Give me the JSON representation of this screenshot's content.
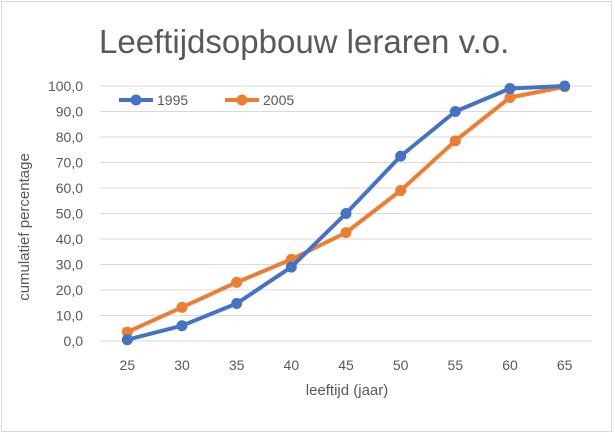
{
  "chart_data": {
    "type": "line",
    "title": "Leeftijdsopbouw leraren v.o.",
    "xlabel": "leeftijd (jaar)",
    "ylabel": "cumulatief percentage",
    "x": [
      25,
      30,
      35,
      40,
      45,
      50,
      55,
      60,
      65
    ],
    "x_tick_labels": [
      "25",
      "30",
      "35",
      "40",
      "45",
      "50",
      "55",
      "60",
      "65"
    ],
    "y_tick_labels": [
      "0,0",
      "10,0",
      "20,0",
      "30,0",
      "40,0",
      "50,0",
      "60,0",
      "70,0",
      "80,0",
      "90,0",
      "100,0"
    ],
    "ylim": [
      0,
      100
    ],
    "grid": true,
    "legend_position": "top-left",
    "series": [
      {
        "name": "1995",
        "color": "#4472c4",
        "values": [
          0.5,
          6,
          14.7,
          29,
          50,
          72.5,
          90,
          99,
          100
        ]
      },
      {
        "name": "2005",
        "color": "#ed7d31",
        "values": [
          3.5,
          13.2,
          23,
          32,
          42.5,
          59,
          78.5,
          95.5,
          99.7
        ]
      }
    ]
  }
}
